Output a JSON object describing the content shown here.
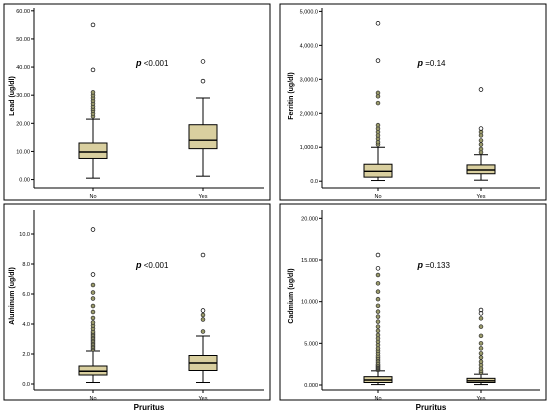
{
  "chart_data": [
    {
      "type": "box",
      "ylabel": "Lead (ug/dl)",
      "xlabel": "",
      "categories": [
        "No",
        "Yes"
      ],
      "yticks": [
        "0.00",
        "10.00",
        "20.00",
        "30.00",
        "40.00",
        "50.00",
        "60.00"
      ],
      "ylim": [
        -3,
        61
      ],
      "annotation": {
        "p": "p",
        "text": " <0.001"
      },
      "boxes": [
        {
          "category": "No",
          "min": 0.5,
          "q1": 7.5,
          "median": 9.8,
          "q3": 13,
          "max": 21.5,
          "outliers": [
            22.5,
            23.5,
            24.5,
            25.2,
            26,
            27,
            28,
            29,
            30,
            31,
            39,
            55
          ]
        },
        {
          "category": "Yes",
          "min": 1.2,
          "q1": 11,
          "median": 14,
          "q3": 19.5,
          "max": 29,
          "outliers": [
            35,
            42
          ]
        }
      ]
    },
    {
      "type": "box",
      "ylabel": "Ferritin (ug/dl)",
      "xlabel": "",
      "categories": [
        "No",
        "Yes"
      ],
      "yticks": [
        "0.0",
        "1,000.0",
        "2,000.0",
        "3,000.0",
        "4,000.0",
        "5,000.0"
      ],
      "ylim": [
        -200,
        5100
      ],
      "annotation": {
        "p": "p",
        "text": " =0.14"
      },
      "boxes": [
        {
          "category": "No",
          "min": 20,
          "q1": 120,
          "median": 290,
          "q3": 500,
          "max": 1000,
          "outliers": [
            1080,
            1150,
            1250,
            1350,
            1450,
            1550,
            1650,
            2300,
            2500,
            2600,
            3550,
            4650
          ]
        },
        {
          "category": "Yes",
          "min": 30,
          "q1": 220,
          "median": 330,
          "q3": 480,
          "max": 780,
          "outliers": [
            850,
            950,
            1080,
            1200,
            1350,
            1450,
            1550,
            2700
          ]
        }
      ]
    },
    {
      "type": "box",
      "ylabel": "Aluminum (ug/dl)",
      "xlabel": "Pruritus",
      "categories": [
        "No",
        "Yes"
      ],
      "yticks": [
        "0.0",
        "2.0",
        "4.0",
        "6.0",
        "8.0",
        "10.0"
      ],
      "ylim": [
        -0.4,
        11.6
      ],
      "annotation": {
        "p": "p",
        "text": " <0.001"
      },
      "boxes": [
        {
          "category": "No",
          "min": 0.1,
          "q1": 0.6,
          "median": 0.85,
          "q3": 1.2,
          "max": 2.2,
          "outliers": [
            2.3,
            2.4,
            2.5,
            2.6,
            2.7,
            2.8,
            2.9,
            3.0,
            3.1,
            3.2,
            3.3,
            3.4,
            3.5,
            3.7,
            3.9,
            4.1,
            4.4,
            4.8,
            5.2,
            5.7,
            6.1,
            6.6,
            7.3,
            10.3
          ]
        },
        {
          "category": "Yes",
          "min": 0.1,
          "q1": 0.9,
          "median": 1.4,
          "q3": 1.9,
          "max": 3.2,
          "outliers": [
            3.5,
            4.3,
            4.6,
            4.9,
            8.6
          ]
        }
      ]
    },
    {
      "type": "box",
      "ylabel": "Cadmium (ug/dl)",
      "xlabel": "Pruritus",
      "categories": [
        "No",
        "Yes"
      ],
      "yticks": [
        "0.000",
        "5.000",
        "10.000",
        "15.000",
        "20.000"
      ],
      "ylim": [
        -0.6,
        21
      ],
      "annotation": {
        "p": "p",
        "text": " =0.133"
      },
      "boxes": [
        {
          "category": "No",
          "min": 0.05,
          "q1": 0.3,
          "median": 0.6,
          "q3": 1.0,
          "max": 1.7,
          "outliers": [
            1.8,
            1.9,
            2.0,
            2.1,
            2.2,
            2.3,
            2.4,
            2.5,
            2.7,
            2.9,
            3.1,
            3.3,
            3.5,
            3.8,
            4.1,
            4.4,
            4.8,
            5.2,
            5.6,
            6.0,
            6.5,
            7.0,
            7.6,
            8.2,
            8.8,
            9.5,
            10.3,
            11.2,
            12.2,
            13.2,
            14.0,
            15.6
          ]
        },
        {
          "category": "Yes",
          "min": 0.05,
          "q1": 0.3,
          "median": 0.5,
          "q3": 0.8,
          "max": 1.3,
          "outliers": [
            1.5,
            1.7,
            2.0,
            2.4,
            2.8,
            3.3,
            3.8,
            4.4,
            5.0,
            5.9,
            7.0,
            8.0,
            8.6,
            9.0
          ]
        }
      ]
    }
  ]
}
